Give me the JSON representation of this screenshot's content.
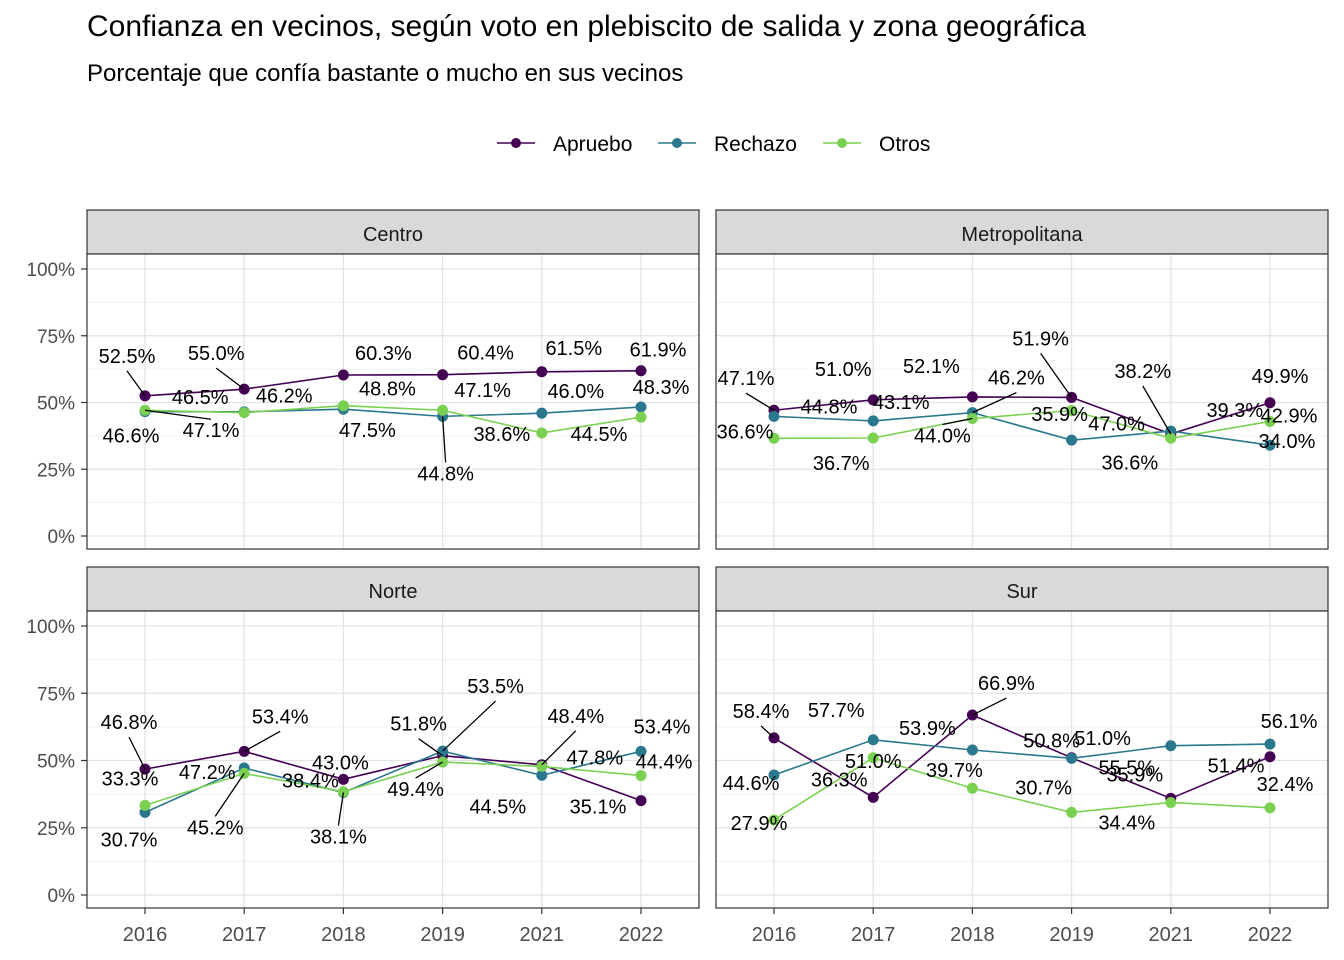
{
  "title": "Confianza en vecinos, según voto en plebiscito de salida y zona geográfica",
  "subtitle": "Porcentaje que confía bastante o mucho en sus vecinos",
  "chart_data": {
    "type": "line",
    "x": [
      "2016",
      "2017",
      "2018",
      "2019",
      "2021",
      "2022"
    ],
    "yticks": [
      "0%",
      "25%",
      "50%",
      "75%",
      "100%"
    ],
    "ylim": [
      0,
      100
    ],
    "legend_position": "top",
    "grid": true,
    "series_names": [
      "Apruebo",
      "Rechazo",
      "Otros"
    ],
    "colors": {
      "Apruebo": "#440154",
      "Rechazo": "#2A788E",
      "Otros": "#7AD151"
    },
    "panels": [
      {
        "name": "Centro",
        "series": [
          {
            "name": "Apruebo",
            "values": [
              52.5,
              55.0,
              60.3,
              60.4,
              61.5,
              61.9
            ],
            "labels": [
              "52.5%",
              "55.0%",
              "60.3%",
              "60.4%",
              "61.5%",
              "61.9%"
            ]
          },
          {
            "name": "Rechazo",
            "values": [
              46.6,
              46.5,
              47.5,
              44.8,
              46.0,
              48.3
            ],
            "labels": [
              "46.6%",
              "46.5%",
              "47.5%",
              "44.8%",
              "46.0%",
              "48.3%"
            ]
          },
          {
            "name": "Otros",
            "values": [
              47.1,
              46.2,
              48.8,
              47.1,
              38.6,
              44.5
            ],
            "labels": [
              "47.1%",
              "46.2%",
              "48.8%",
              "47.1%",
              "38.6%",
              "44.5%"
            ]
          }
        ]
      },
      {
        "name": "Metropolitana",
        "series": [
          {
            "name": "Apruebo",
            "values": [
              47.1,
              51.0,
              52.1,
              51.9,
              38.2,
              49.9
            ],
            "labels": [
              "47.1%",
              "51.0%",
              "52.1%",
              "51.9%",
              "38.2%",
              "49.9%"
            ]
          },
          {
            "name": "Rechazo",
            "values": [
              44.8,
              43.1,
              46.2,
              35.9,
              39.3,
              34.0
            ],
            "labels": [
              "44.8%",
              "43.1%",
              "46.2%",
              "35.9%",
              "39.3%",
              "34.0%"
            ]
          },
          {
            "name": "Otros",
            "values": [
              36.6,
              36.7,
              44.0,
              47.0,
              36.6,
              42.9
            ],
            "labels": [
              "36.6%",
              "36.7%",
              "44.0%",
              "47.0%",
              "36.6%",
              "42.9%"
            ]
          }
        ]
      },
      {
        "name": "Norte",
        "series": [
          {
            "name": "Apruebo",
            "values": [
              46.8,
              53.4,
              43.0,
              51.8,
              48.4,
              35.1
            ],
            "labels": [
              "46.8%",
              "53.4%",
              "43.0%",
              "51.8%",
              "48.4%",
              "35.1%"
            ]
          },
          {
            "name": "Rechazo",
            "values": [
              30.7,
              47.2,
              38.1,
              53.5,
              44.5,
              53.4
            ],
            "labels": [
              "30.7%",
              "47.2%",
              "38.1%",
              "53.5%",
              "44.5%",
              "53.4%"
            ]
          },
          {
            "name": "Otros",
            "values": [
              33.3,
              45.2,
              38.4,
              49.4,
              47.8,
              44.4
            ],
            "labels": [
              "33.3%",
              "45.2%",
              "38.4%",
              "49.4%",
              "47.8%",
              "44.4%"
            ]
          }
        ]
      },
      {
        "name": "Sur",
        "series": [
          {
            "name": "Apruebo",
            "values": [
              58.4,
              36.3,
              66.9,
              51.0,
              35.9,
              51.4
            ],
            "labels": [
              "58.4%",
              "36.3%",
              "66.9%",
              "51.0%",
              "35.9%",
              "51.4%"
            ]
          },
          {
            "name": "Rechazo",
            "values": [
              44.6,
              57.7,
              53.9,
              50.8,
              55.5,
              56.1
            ],
            "labels": [
              "44.6%",
              "57.7%",
              "53.9%",
              "50.8%",
              "55.5%",
              "56.1%"
            ]
          },
          {
            "name": "Otros",
            "values": [
              27.9,
              51.0,
              39.7,
              30.7,
              34.4,
              32.4
            ],
            "labels": [
              "27.9%",
              "51.0%",
              "39.7%",
              "30.7%",
              "34.4%",
              "32.4%"
            ]
          }
        ]
      }
    ]
  }
}
